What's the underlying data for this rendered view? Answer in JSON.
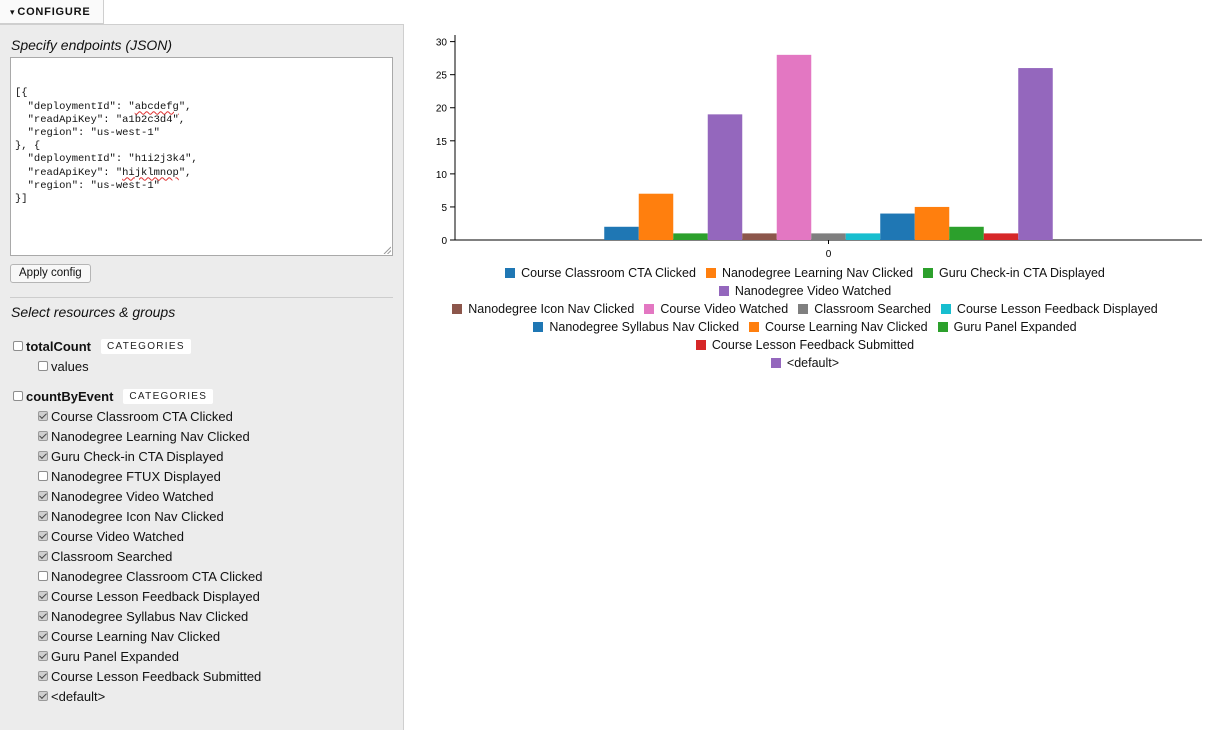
{
  "tab": {
    "label": "CONFIGURE",
    "caret": "▾"
  },
  "config": {
    "endpoints_heading": "Specify endpoints (JSON)",
    "json_lines": [
      [
        {
          "t": "[{"
        }
      ],
      [
        {
          "t": "  \"deploymentId\": \""
        },
        {
          "t": "abcdefg",
          "sq": true
        },
        {
          "t": "\","
        }
      ],
      [
        {
          "t": "  \"readApiKey\": \"a1b2c3d4\","
        }
      ],
      [
        {
          "t": "  \"region\": \"us-west-1\""
        }
      ],
      [
        {
          "t": "}, {"
        }
      ],
      [
        {
          "t": "  \"deploymentId\": \"h1i2j3k4\","
        }
      ],
      [
        {
          "t": "  \"readApiKey\": \""
        },
        {
          "t": "hijklmnop",
          "sq": true
        },
        {
          "t": "\","
        }
      ],
      [
        {
          "t": "  \"region\": \"us-west-1\""
        }
      ],
      [
        {
          "t": "}]"
        }
      ]
    ],
    "apply_label": "Apply config",
    "resources_heading": "Select resources & groups"
  },
  "resources": [
    {
      "name": "totalCount",
      "badge": "CATEGORIES",
      "checked": false,
      "items": [
        {
          "label": "values",
          "checked": false
        }
      ]
    },
    {
      "name": "countByEvent",
      "badge": "CATEGORIES",
      "checked": false,
      "items": [
        {
          "label": "Course Classroom CTA Clicked",
          "checked": true
        },
        {
          "label": "Nanodegree Learning Nav Clicked",
          "checked": true
        },
        {
          "label": "Guru Check-in CTA Displayed",
          "checked": true
        },
        {
          "label": "Nanodegree FTUX Displayed",
          "checked": false
        },
        {
          "label": "Nanodegree Video Watched",
          "checked": true
        },
        {
          "label": "Nanodegree Icon Nav Clicked",
          "checked": true
        },
        {
          "label": "Course Video Watched",
          "checked": true
        },
        {
          "label": "Classroom Searched",
          "checked": true
        },
        {
          "label": "Nanodegree Classroom CTA Clicked",
          "checked": false
        },
        {
          "label": "Course Lesson Feedback Displayed",
          "checked": true
        },
        {
          "label": "Nanodegree Syllabus Nav Clicked",
          "checked": true
        },
        {
          "label": "Course Learning Nav Clicked",
          "checked": true
        },
        {
          "label": "Guru Panel Expanded",
          "checked": true
        },
        {
          "label": "Course Lesson Feedback Submitted",
          "checked": true
        },
        {
          "label": "<default>",
          "checked": true
        }
      ]
    }
  ],
  "chart_data": {
    "type": "bar",
    "categories": [
      "0"
    ],
    "ylim": [
      0,
      31
    ],
    "yticks": [
      0,
      5,
      10,
      15,
      20,
      25,
      30
    ],
    "series": [
      {
        "name": "Course Classroom CTA Clicked",
        "color": "#1f77b4",
        "values": [
          2
        ]
      },
      {
        "name": "Nanodegree Learning Nav Clicked",
        "color": "#ff7f0e",
        "values": [
          7
        ]
      },
      {
        "name": "Guru Check-in CTA Displayed",
        "color": "#2ca02c",
        "values": [
          1
        ]
      },
      {
        "name": "Nanodegree Video Watched",
        "color": "#9467bd",
        "values": [
          19
        ]
      },
      {
        "name": "Nanodegree Icon Nav Clicked",
        "color": "#8c564b",
        "values": [
          1
        ]
      },
      {
        "name": "Course Video Watched",
        "color": "#e377c2",
        "values": [
          28
        ]
      },
      {
        "name": "Classroom Searched",
        "color": "#7f7f7f",
        "values": [
          1
        ]
      },
      {
        "name": "Course Lesson Feedback Displayed",
        "color": "#17becf",
        "values": [
          1
        ]
      },
      {
        "name": "Nanodegree Syllabus Nav Clicked",
        "color": "#1f77b4",
        "values": [
          4
        ]
      },
      {
        "name": "Course Learning Nav Clicked",
        "color": "#ff7f0e",
        "values": [
          5
        ]
      },
      {
        "name": "Guru Panel Expanded",
        "color": "#2ca02c",
        "values": [
          2
        ]
      },
      {
        "name": "Course Lesson Feedback Submitted",
        "color": "#d62728",
        "values": [
          1
        ]
      },
      {
        "name": "<default>",
        "color": "#9467bd",
        "values": [
          26
        ]
      }
    ]
  }
}
